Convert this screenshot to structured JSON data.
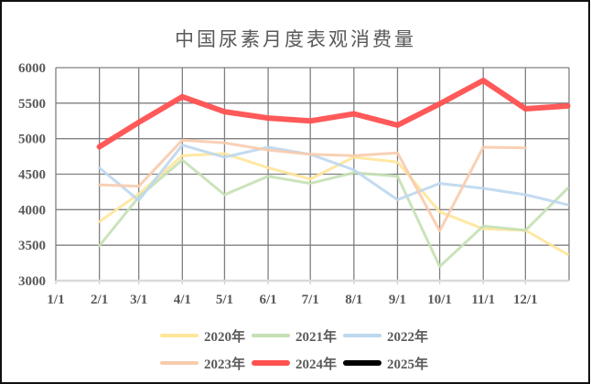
{
  "chart_data": {
    "type": "line",
    "title": "中国尿素月度表观消费量",
    "xlabel": "",
    "ylabel": "",
    "ylim": [
      3000,
      6000
    ],
    "yticks": [
      3000,
      3500,
      4000,
      4500,
      5000,
      5500,
      6000
    ],
    "xticks": [
      "1/1",
      "2/1",
      "3/1",
      "4/1",
      "5/1",
      "6/1",
      "7/1",
      "8/1",
      "9/1",
      "10/1",
      "11/1",
      "12/1"
    ],
    "x": [
      "2/1",
      "3/1",
      "4/1",
      "5/1",
      "6/1",
      "7/1",
      "8/1",
      "9/1",
      "10/1",
      "11/1",
      "12/1",
      "12/31"
    ],
    "grid": true,
    "legend_position": "bottom",
    "series": [
      {
        "name": "2020年",
        "color": "#FFE699",
        "width": 3,
        "values": [
          3830,
          4220,
          4760,
          4790,
          4590,
          4430,
          4740,
          4670,
          3970,
          3730,
          3710,
          3370
        ]
      },
      {
        "name": "2021年",
        "color": "#C5E0B4",
        "width": 3,
        "values": [
          3490,
          4180,
          4700,
          4210,
          4470,
          4370,
          4520,
          4470,
          3200,
          3770,
          3710,
          4300
        ]
      },
      {
        "name": "2022年",
        "color": "#BDD7EE",
        "width": 3,
        "values": [
          4590,
          4130,
          4910,
          4740,
          4880,
          4780,
          4560,
          4140,
          4370,
          4300,
          4210,
          4070
        ]
      },
      {
        "name": "2023年",
        "color": "#F8CBAD",
        "width": 3,
        "values": [
          4350,
          4330,
          4980,
          4940,
          4840,
          4780,
          4760,
          4800,
          3700,
          4880,
          4870,
          null
        ]
      },
      {
        "name": "2024年",
        "color": "#FF5050",
        "width": 6,
        "values": [
          4885,
          5230,
          5590,
          5380,
          5290,
          5250,
          5350,
          5190,
          5490,
          5820,
          5420,
          5460
        ]
      },
      {
        "name": "2025年",
        "color": "#000000",
        "width": 4,
        "values": []
      }
    ]
  },
  "legend": {
    "items": [
      {
        "label": "2020年",
        "color": "#FFE699"
      },
      {
        "label": "2021年",
        "color": "#C5E0B4"
      },
      {
        "label": "2022年",
        "color": "#BDD7EE"
      },
      {
        "label": "2023年",
        "color": "#F8CBAD"
      },
      {
        "label": "2024年",
        "color": "#FF5050"
      },
      {
        "label": "2025年",
        "color": "#000000"
      }
    ]
  }
}
